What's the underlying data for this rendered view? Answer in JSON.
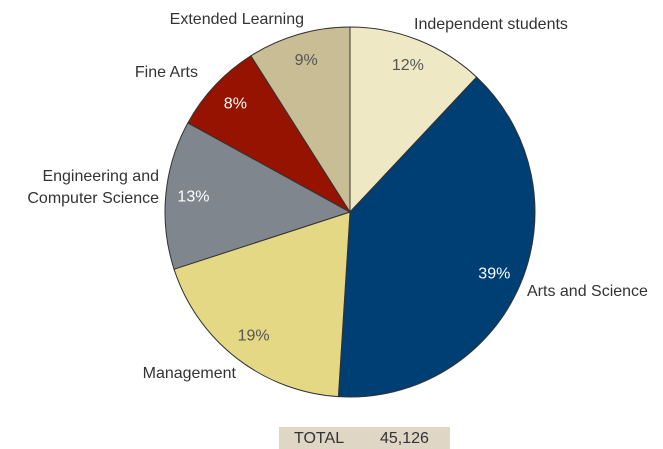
{
  "chart_data": {
    "type": "pie",
    "categories": [
      "Independent students",
      "Arts and Science",
      "Management",
      "Engineering and Computer Science",
      "Fine Arts",
      "Extended Learning"
    ],
    "values": [
      12,
      39,
      19,
      13,
      8,
      9
    ],
    "value_labels": [
      "12%",
      "39%",
      "19%",
      "13%",
      "8%",
      "9%"
    ],
    "colors": [
      "#efe8c4",
      "#003f73",
      "#e4d884",
      "#7f868d",
      "#951300",
      "#c8bd94"
    ],
    "total_label": "TOTAL",
    "total_value": "45,126"
  }
}
